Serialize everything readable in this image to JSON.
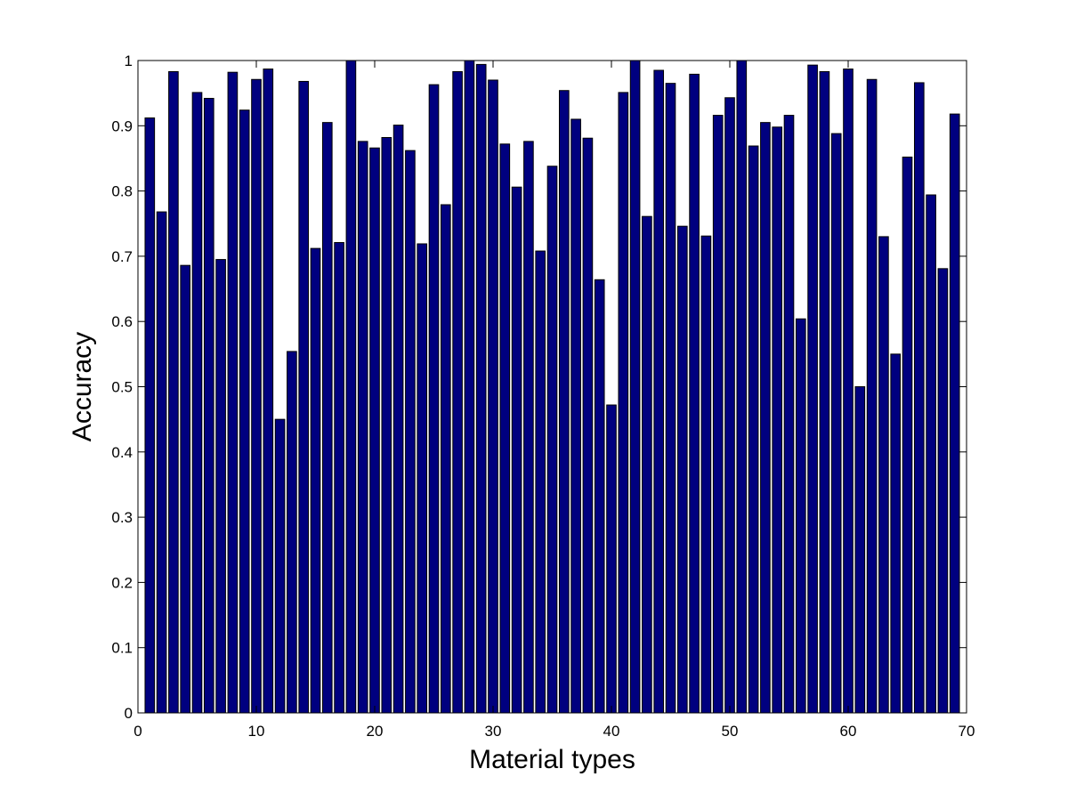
{
  "chart_data": {
    "type": "bar",
    "xlabel": "Material types",
    "ylabel": "Accuracy",
    "xlim": [
      0,
      70
    ],
    "ylim": [
      0,
      1
    ],
    "xticks": [
      0,
      10,
      20,
      30,
      40,
      50,
      60,
      70
    ],
    "yticks": [
      0,
      0.1,
      0.2,
      0.3,
      0.4,
      0.5,
      0.6,
      0.7,
      0.8,
      0.9,
      1
    ],
    "xtick_labels": [
      "0",
      "10",
      "20",
      "30",
      "40",
      "50",
      "60",
      "70"
    ],
    "ytick_labels": [
      "0",
      "0.1",
      "0.2",
      "0.3",
      "0.4",
      "0.5",
      "0.6",
      "0.7",
      "0.8",
      "0.9",
      "1"
    ],
    "grid": false,
    "bar_color": "#00007f",
    "x": [
      1,
      2,
      3,
      4,
      5,
      6,
      7,
      8,
      9,
      10,
      11,
      12,
      13,
      14,
      15,
      16,
      17,
      18,
      19,
      20,
      21,
      22,
      23,
      24,
      25,
      26,
      27,
      28,
      29,
      30,
      31,
      32,
      33,
      34,
      35,
      36,
      37,
      38,
      39,
      40,
      41,
      42,
      43,
      44,
      45,
      46,
      47,
      48,
      49,
      50,
      51,
      52,
      53,
      54,
      55,
      56,
      57,
      58,
      59,
      60,
      61,
      62,
      63,
      64,
      65,
      66,
      67,
      68,
      69
    ],
    "values": [
      0.912,
      0.768,
      0.983,
      0.686,
      0.951,
      0.942,
      0.695,
      0.982,
      0.924,
      0.971,
      0.987,
      0.45,
      0.554,
      0.968,
      0.712,
      0.905,
      0.721,
      1.0,
      0.876,
      0.866,
      0.882,
      0.901,
      0.862,
      0.719,
      0.963,
      0.779,
      0.983,
      1.0,
      0.994,
      0.97,
      0.872,
      0.806,
      0.876,
      0.708,
      0.838,
      0.954,
      0.91,
      0.881,
      0.664,
      0.472,
      0.951,
      1.0,
      0.761,
      0.985,
      0.965,
      0.746,
      0.979,
      0.731,
      0.916,
      0.943,
      1.0,
      0.869,
      0.905,
      0.898,
      0.916,
      0.604,
      0.993,
      0.983,
      0.888,
      0.987,
      0.5,
      0.971,
      0.73,
      0.55,
      0.852,
      0.966,
      0.794,
      0.681,
      0.918
    ]
  }
}
